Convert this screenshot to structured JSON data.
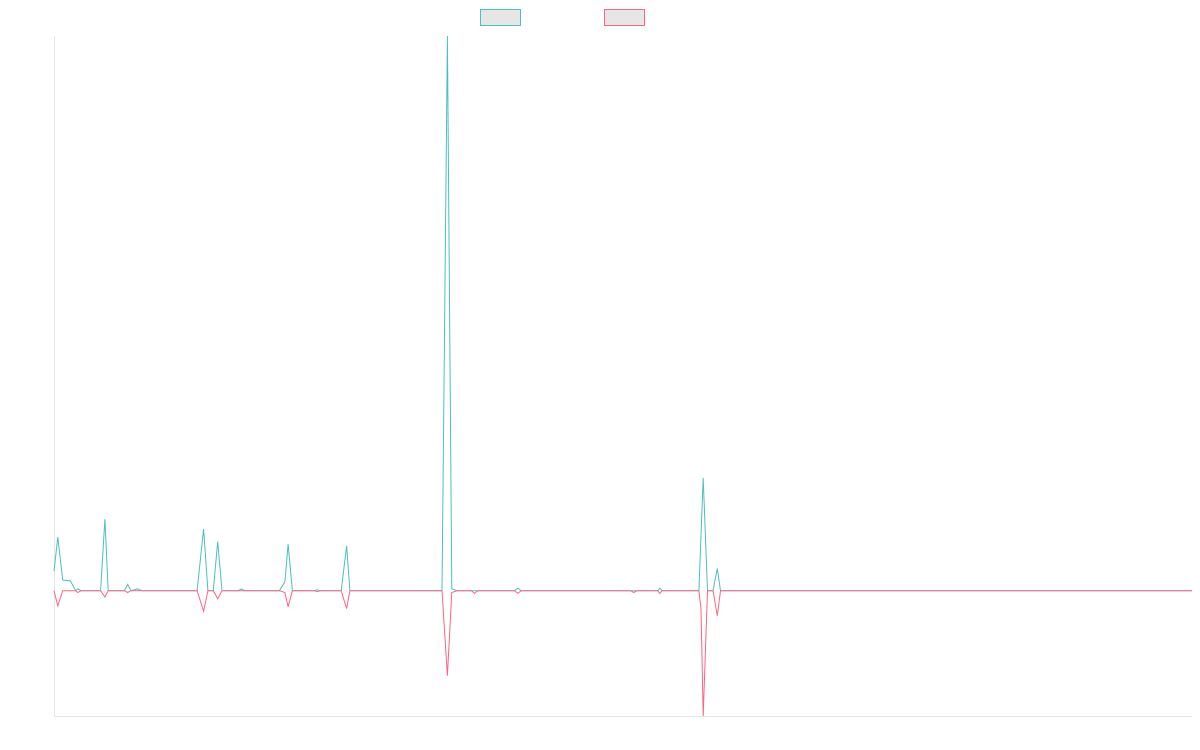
{
  "chart_data": {
    "type": "line",
    "title": "",
    "xlabel": "",
    "ylabel": "",
    "legend_position": "top-center",
    "grid": false,
    "xlim": [
      0,
      105
    ],
    "ylim": [
      -1.4,
      6.2
    ],
    "series": [
      {
        "color": "#4bc0c0",
        "legend_fill": "#e6e6e6",
        "points": [
          [
            0,
            0.22
          ],
          [
            0.35,
            0.6
          ],
          [
            0.8,
            0.12
          ],
          [
            1.5,
            0.11
          ],
          [
            2.0,
            0.0
          ],
          [
            2.2,
            0.02
          ],
          [
            2.5,
            0.0
          ],
          [
            4.3,
            0.0
          ],
          [
            4.7,
            0.8
          ],
          [
            5.0,
            0.0
          ],
          [
            6.5,
            0.0
          ],
          [
            6.8,
            0.07
          ],
          [
            7.1,
            0.0
          ],
          [
            7.7,
            0.02
          ],
          [
            8.1,
            0.0
          ],
          [
            13.2,
            0.0
          ],
          [
            13.8,
            0.69
          ],
          [
            14.2,
            0.0
          ],
          [
            14.7,
            0.0
          ],
          [
            15.1,
            0.55
          ],
          [
            15.5,
            0.0
          ],
          [
            17.0,
            0.0
          ],
          [
            17.3,
            0.02
          ],
          [
            17.6,
            0.0
          ],
          [
            20.8,
            0.0
          ],
          [
            21.3,
            0.1
          ],
          [
            21.6,
            0.52
          ],
          [
            22.0,
            0.0
          ],
          [
            24.0,
            0.0
          ],
          [
            24.3,
            0.01
          ],
          [
            24.6,
            0.0
          ],
          [
            26.5,
            0.0
          ],
          [
            27.0,
            0.5
          ],
          [
            27.3,
            0.0
          ],
          [
            35.8,
            0.0
          ],
          [
            36.3,
            6.2
          ],
          [
            36.7,
            0.02
          ],
          [
            37.2,
            0.0
          ],
          [
            42.5,
            0.0
          ],
          [
            42.8,
            0.03
          ],
          [
            43.1,
            0.0
          ],
          [
            48.0,
            0.0
          ],
          [
            48.2,
            0.0
          ],
          [
            55.7,
            0.0
          ],
          [
            55.9,
            0.03
          ],
          [
            56.1,
            0.0
          ],
          [
            59.5,
            0.0
          ],
          [
            59.9,
            1.26
          ],
          [
            60.3,
            0.0
          ],
          [
            60.8,
            0.0
          ],
          [
            61.2,
            0.25
          ],
          [
            61.5,
            0.0
          ],
          [
            105,
            0.0
          ]
        ]
      },
      {
        "color": "#ff6384",
        "legend_fill": "#e6e6e6",
        "points": [
          [
            0,
            0.0
          ],
          [
            0.35,
            -0.17
          ],
          [
            0.8,
            0.0
          ],
          [
            2.0,
            0.0
          ],
          [
            2.2,
            -0.02
          ],
          [
            2.5,
            0.0
          ],
          [
            4.3,
            0.0
          ],
          [
            4.7,
            -0.07
          ],
          [
            5.0,
            0.0
          ],
          [
            6.5,
            0.0
          ],
          [
            6.8,
            -0.02
          ],
          [
            7.1,
            0.0
          ],
          [
            13.2,
            0.0
          ],
          [
            13.8,
            -0.23
          ],
          [
            14.2,
            0.0
          ],
          [
            14.7,
            0.0
          ],
          [
            15.1,
            -0.09
          ],
          [
            15.5,
            0.0
          ],
          [
            20.8,
            0.0
          ],
          [
            21.3,
            -0.02
          ],
          [
            21.6,
            -0.18
          ],
          [
            22.0,
            0.0
          ],
          [
            24.0,
            0.0
          ],
          [
            24.3,
            -0.01
          ],
          [
            24.6,
            0.0
          ],
          [
            26.5,
            0.0
          ],
          [
            27.0,
            -0.2
          ],
          [
            27.3,
            0.0
          ],
          [
            35.8,
            0.0
          ],
          [
            36.3,
            -0.95
          ],
          [
            36.7,
            -0.02
          ],
          [
            37.2,
            0.0
          ],
          [
            38.5,
            0.0
          ],
          [
            38.8,
            -0.03
          ],
          [
            39.1,
            0.0
          ],
          [
            42.5,
            0.0
          ],
          [
            42.8,
            -0.03
          ],
          [
            43.1,
            0.0
          ],
          [
            48.0,
            0.0
          ],
          [
            48.2,
            0.0
          ],
          [
            53.2,
            0.0
          ],
          [
            53.5,
            -0.02
          ],
          [
            53.8,
            0.0
          ],
          [
            55.7,
            0.0
          ],
          [
            55.9,
            -0.03
          ],
          [
            56.1,
            0.0
          ],
          [
            59.5,
            0.0
          ],
          [
            59.7,
            -0.2
          ],
          [
            59.9,
            -1.4
          ],
          [
            60.3,
            0.0
          ],
          [
            60.8,
            0.0
          ],
          [
            61.2,
            -0.28
          ],
          [
            61.5,
            0.0
          ],
          [
            105,
            0.0
          ]
        ]
      }
    ]
  }
}
